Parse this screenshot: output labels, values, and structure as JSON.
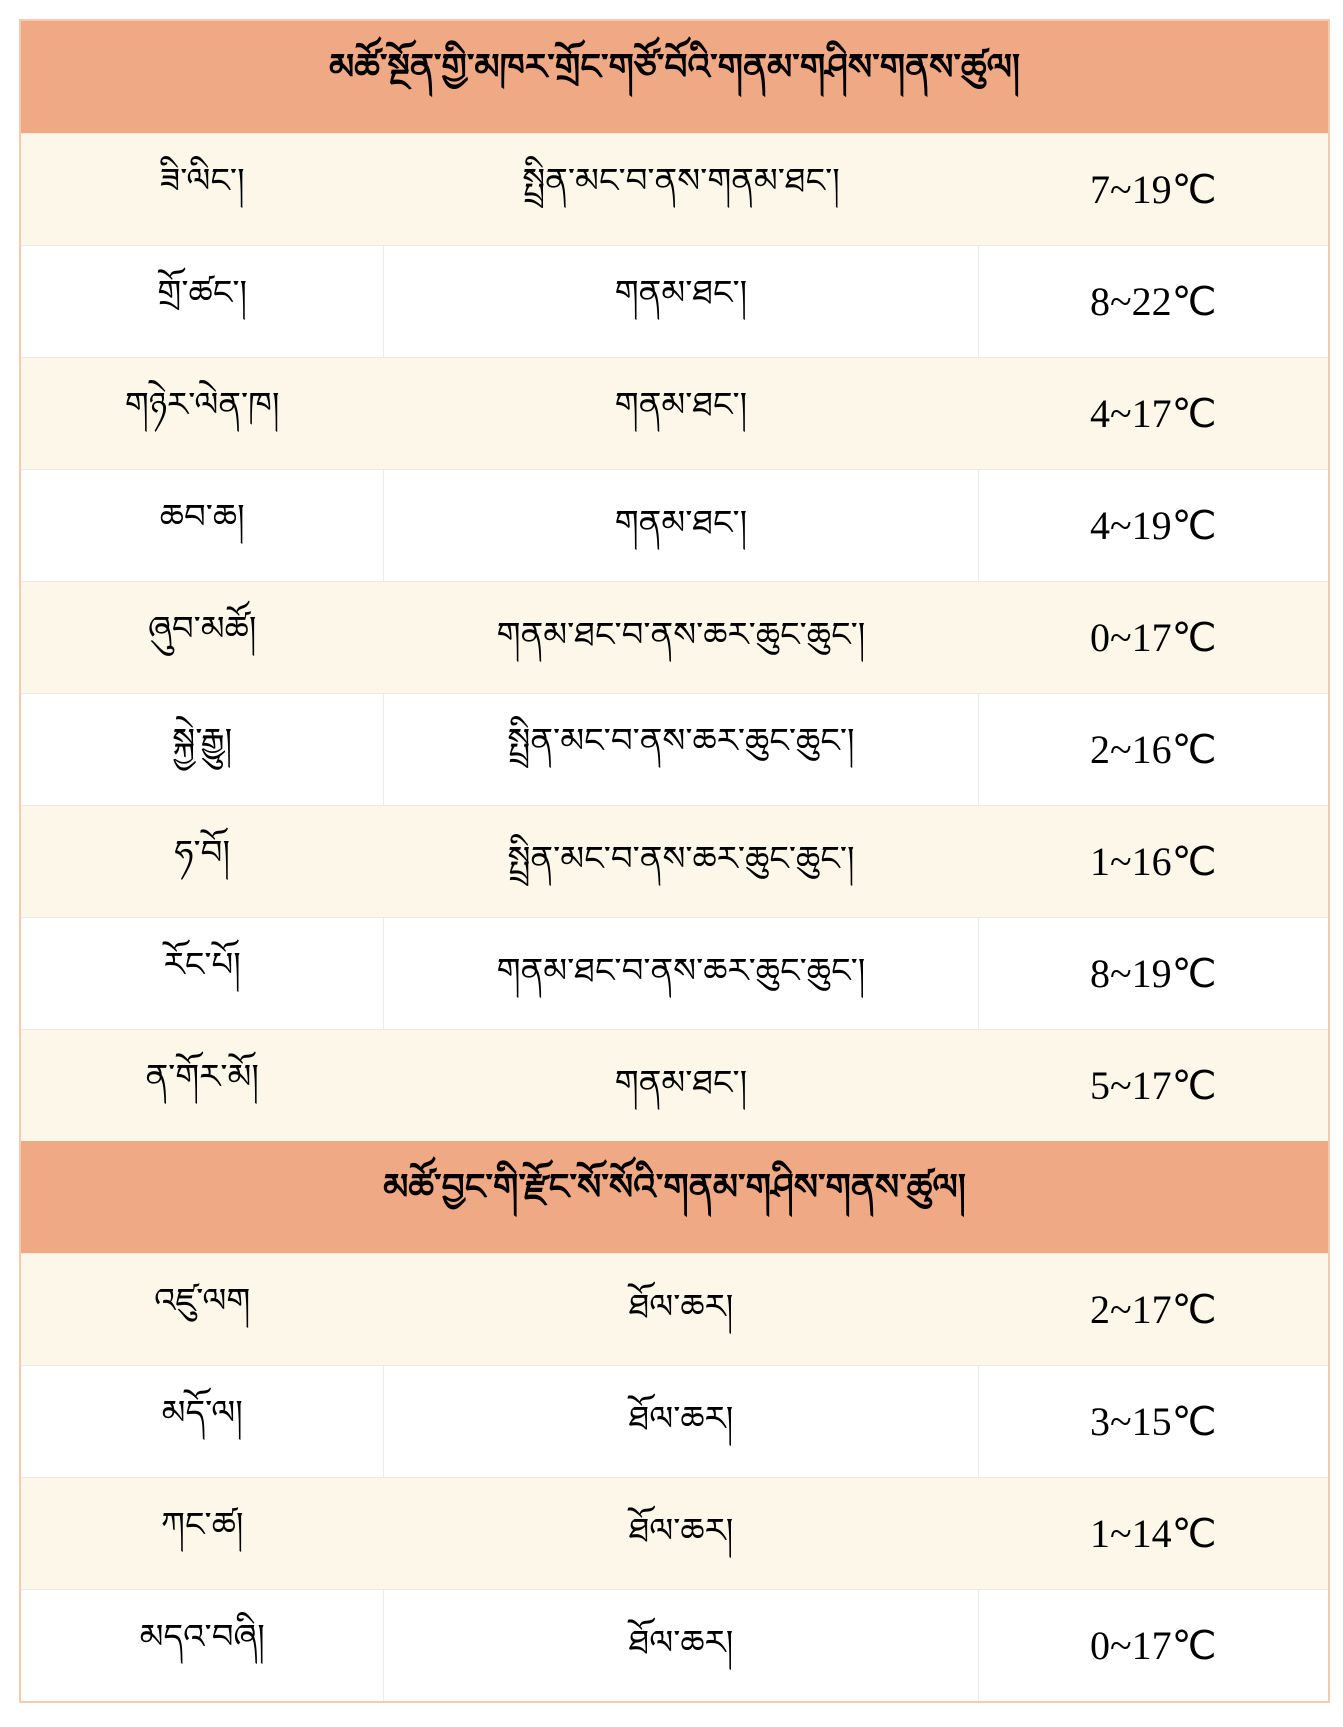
{
  "sections": [
    {
      "title": "མཚོ་སྔོན་གྱི་མཁར་གྲོང་གཙོ་བོའི་གནམ་གཤིས་གནས་ཚུལ།",
      "rows": [
        {
          "place": "ཟི་ལིང་།",
          "weather": "སྤྲིན་མང་བ་ནས་གནམ་ཐང་།",
          "temp": "7~19℃"
        },
        {
          "place": "གྲོ་ཚང་།",
          "weather": "གནམ་ཐང་།",
          "temp": "8~22℃"
        },
        {
          "place": "གཉེར་ལེན་ཁ།",
          "weather": "གནམ་ཐང་།",
          "temp": "4~17℃"
        },
        {
          "place": "ཆབ་ཆ།",
          "weather": "གནམ་ཐང་།",
          "temp": "4~19℃"
        },
        {
          "place": "ཞུབ་མཚོ།",
          "weather": "གནམ་ཐང་བ་ནས་ཆར་ཆུང་ཆུང་།",
          "temp": "0~17℃"
        },
        {
          "place": "སྐྱེ་རྒྱུ།",
          "weather": "སྤྲིན་མང་བ་ནས་ཆར་ཆུང་ཆུང་།",
          "temp": "2~16℃"
        },
        {
          "place": "ཧ་བོ།",
          "weather": "སྤྲིན་མང་བ་ནས་ཆར་ཆུང་ཆུང་།",
          "temp": "1~16℃"
        },
        {
          "place": "རོང་པོ།",
          "weather": "གནམ་ཐང་བ་ནས་ཆར་ཆུང་ཆུང་།",
          "temp": "8~19℃"
        },
        {
          "place": "ན་གོར་མོ།",
          "weather": "གནམ་ཐང་།",
          "temp": "5~17℃"
        }
      ]
    },
    {
      "title": "མཚོ་བྱང་གི་རྫོང་སོ་སོའི་གནམ་གཤིས་གནས་ཚུལ།",
      "rows": [
        {
          "place": "འཛུ་ལག",
          "weather": "ཐོལ་ཆར།",
          "temp": "2~17℃"
        },
        {
          "place": "མདོ་ལ།",
          "weather": "ཐོལ་ཆར།",
          "temp": "3~15℃"
        },
        {
          "place": "ཀང་ཚ།",
          "weather": "ཐོལ་ཆར།",
          "temp": "1~14℃"
        },
        {
          "place": "མདའ་བཞི།",
          "weather": "ཐོལ་ཆར།",
          "temp": "0~17℃"
        }
      ]
    }
  ],
  "colors": {
    "header_bg": "#EFA985",
    "row_alt_bg": "#FDF7EA",
    "border": "#F4CBAE"
  }
}
